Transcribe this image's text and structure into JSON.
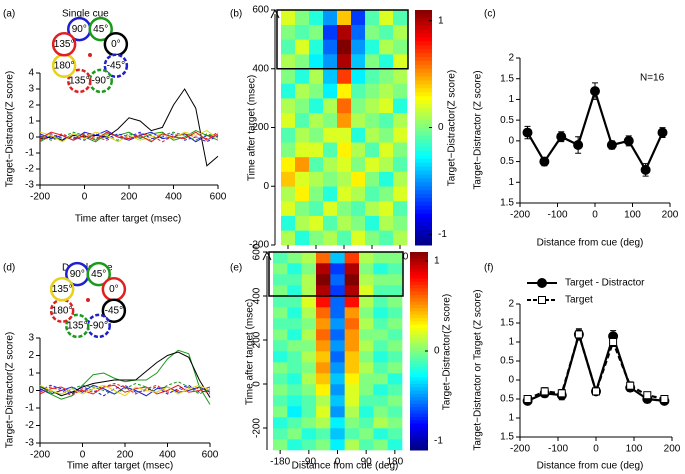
{
  "chart_data": [
    {
      "type": "line",
      "label": "(a)",
      "title": "Single cue",
      "xlabel": "Time after target (msec)",
      "ylabel": "Target−Distractor(Z score)",
      "xlim": [
        -200,
        600
      ],
      "xticks": [
        -200,
        0,
        200,
        400,
        600
      ],
      "ylim": [
        -3,
        4
      ],
      "yticks": [
        -3,
        -2,
        -1,
        0,
        1,
        2,
        3,
        4
      ],
      "x": [
        -200,
        -150,
        -100,
        -50,
        0,
        50,
        100,
        150,
        200,
        250,
        300,
        350,
        400,
        450,
        500,
        550,
        600
      ],
      "series": [
        {
          "name": "90°",
          "color": "#1f1fd0",
          "values": [
            0.2,
            -0.1,
            0.1,
            -0.2,
            0.3,
            0.1,
            0.4,
            0,
            -0.2,
            0.1,
            0.3,
            -0.1,
            0,
            0.2,
            -0.3,
            0.1,
            0
          ]
        },
        {
          "name": "45°",
          "color": "#1a9a1a",
          "values": [
            -0.3,
            0.1,
            -0.2,
            0.2,
            0,
            -0.3,
            0.2,
            0.1,
            0.3,
            -0.1,
            0.2,
            0.3,
            -0.2,
            0,
            0.4,
            0.1,
            -0.2
          ]
        },
        {
          "name": "0°",
          "color": "#000000",
          "values": [
            -0.1,
            0,
            -0.2,
            0.1,
            0,
            0.1,
            0,
            0.5,
            1.2,
            1.0,
            0.4,
            0.6,
            2.0,
            3.0,
            1.8,
            -1.8,
            -1.2
          ]
        },
        {
          "name": "-45°",
          "color": "#1f1fd0",
          "dash": true,
          "values": [
            0,
            0.2,
            -0.1,
            0,
            -0.2,
            0.2,
            -0.1,
            0.2,
            0,
            0.3,
            -0.1,
            0,
            0.2,
            -0.2,
            0,
            -0.3,
            0.1
          ]
        },
        {
          "name": "-90°",
          "color": "#1a9a1a",
          "dash": true,
          "values": [
            0.1,
            -0.2,
            0,
            0.3,
            0.1,
            -0.1,
            0,
            -0.2,
            0.2,
            0,
            -0.2,
            0.1,
            0.3,
            0.1,
            -0.2,
            0.2,
            0
          ]
        },
        {
          "name": "135°",
          "color": "#e02020",
          "dash": true,
          "values": [
            -0.2,
            0,
            0.2,
            -0.1,
            0.2,
            0,
            -0.2,
            0.1,
            -0.1,
            0.2,
            0.1,
            -0.3,
            0.1,
            0.2,
            0,
            -0.1,
            0.3
          ]
        },
        {
          "name": "180°",
          "color": "#e6d21a",
          "values": [
            0.3,
            0.1,
            -0.3,
            0.2,
            -0.1,
            0.3,
            0.1,
            -0.3,
            0.1,
            -0.2,
            0,
            0.2,
            -0.1,
            0.3,
            0.1,
            0.4,
            -0.1
          ]
        },
        {
          "name": "135°",
          "color": "#e02020",
          "values": [
            -0.1,
            0.3,
            0.1,
            -0.2,
            0.1,
            -0.2,
            0.3,
            0,
            -0.1,
            0.1,
            -0.3,
            0.2,
            0,
            -0.1,
            0.3,
            -0.2,
            0.2
          ]
        }
      ]
    },
    {
      "type": "heatmap",
      "label": "(b)",
      "xlabel": "Distance from cue (deg)",
      "ylabel": "Time after target (msec)",
      "colorbar_label": "Target−Distractor(Z score)",
      "xlim": [
        -202.5,
        202.5
      ],
      "xticks": [
        -180,
        -90,
        0,
        90,
        180
      ],
      "ylim": [
        -200,
        600
      ],
      "yticks": [
        -200,
        0,
        200,
        400,
        600
      ],
      "clim": [
        -1.1,
        1.1
      ],
      "cticks": [
        1,
        0,
        -1
      ],
      "highlight": [
        400,
        600
      ],
      "x": [
        -180,
        -135,
        -90,
        -45,
        0,
        45,
        90,
        135,
        180
      ],
      "y": [
        -175,
        -125,
        -75,
        -25,
        25,
        75,
        125,
        175,
        225,
        275,
        325,
        375,
        425,
        475,
        525,
        575
      ],
      "z": [
        [
          0.1,
          -0.2,
          0,
          0.1,
          -0.1,
          0.2,
          0,
          -0.1,
          0.1
        ],
        [
          -0.2,
          0.1,
          0.2,
          -0.1,
          0.1,
          0,
          -0.2,
          0.1,
          0
        ],
        [
          0.2,
          0,
          -0.1,
          0.2,
          0,
          -0.1,
          0.1,
          0.2,
          -0.1
        ],
        [
          0.1,
          0.3,
          0,
          -0.2,
          0.2,
          0.1,
          -0.1,
          0,
          0.2
        ],
        [
          0.4,
          0.2,
          0.1,
          0,
          0.1,
          0.3,
          0,
          -0.2,
          0.1
        ],
        [
          0.3,
          0.5,
          -0.1,
          0.1,
          0.2,
          0,
          0.2,
          0.1,
          -0.1
        ],
        [
          0,
          0.2,
          0.2,
          -0.1,
          0.3,
          0.1,
          -0.1,
          0.2,
          0
        ],
        [
          -0.1,
          0.1,
          0,
          0.2,
          0.2,
          -0.2,
          0.1,
          0,
          0.2
        ],
        [
          0.2,
          -0.1,
          0.1,
          0,
          0.5,
          0.1,
          0,
          -0.1,
          0.1
        ],
        [
          0.1,
          0,
          -0.2,
          0.1,
          0.6,
          0,
          0.1,
          0.2,
          -0.2
        ],
        [
          -0.2,
          0.1,
          0,
          -0.3,
          0.3,
          -0.1,
          0,
          0.1,
          0
        ],
        [
          0,
          -0.2,
          0.1,
          -0.4,
          0.7,
          -0.3,
          -0.1,
          0,
          0.1
        ],
        [
          0.1,
          0,
          -0.3,
          -0.5,
          1.0,
          -0.4,
          0,
          -0.2,
          0.2
        ],
        [
          -0.1,
          0.2,
          -0.2,
          -0.6,
          1.1,
          -0.5,
          -0.2,
          0.1,
          0
        ],
        [
          0,
          -0.1,
          0,
          -0.7,
          1.0,
          -0.6,
          0,
          -0.1,
          0.1
        ],
        [
          0.2,
          0,
          -0.2,
          -0.5,
          0.4,
          -0.7,
          -0.1,
          0.2,
          -0.1
        ]
      ]
    },
    {
      "type": "line",
      "label": "(c)",
      "xlabel": "Distance from cue (deg)",
      "ylabel": "Target−Distractor (Z score)",
      "annotation": "N=16",
      "xlim": [
        -200,
        200
      ],
      "xticks": [
        -200,
        -100,
        0,
        100,
        200
      ],
      "ylim": [
        -1.5,
        2
      ],
      "yticks": [
        2,
        1.5,
        1,
        0.5,
        0,
        {
          "value": -0.5,
          "label": "0.5"
        },
        {
          "value": -1,
          "label": "1"
        },
        {
          "value": -1.5,
          "label": "1.5"
        }
      ],
      "x": [
        -180,
        -135,
        -90,
        -45,
        0,
        45,
        90,
        135,
        180
      ],
      "series": [
        {
          "color": "#000000",
          "marker": "circle",
          "fill": "#000000",
          "values": [
            0.2,
            -0.5,
            0.1,
            -0.1,
            1.2,
            -0.1,
            0,
            -0.7,
            0.2
          ],
          "errors": [
            0.15,
            0.1,
            0.12,
            0.2,
            0.2,
            0.1,
            0.12,
            0.15,
            0.12
          ]
        }
      ]
    },
    {
      "type": "line",
      "label": "(d)",
      "title": "Double cue",
      "xlabel": "Time after target (msec)",
      "ylabel": "Target−Distractor(Z score)",
      "xlim": [
        -200,
        600
      ],
      "xticks": [
        -200,
        0,
        200,
        400,
        600
      ],
      "ylim": [
        -3,
        3
      ],
      "yticks": [
        -3,
        -2,
        -1,
        0,
        1,
        2,
        3
      ],
      "x": [
        -200,
        -150,
        -100,
        -50,
        0,
        50,
        100,
        150,
        200,
        250,
        300,
        350,
        400,
        450,
        500,
        550,
        600
      ],
      "series": [
        {
          "name": "90°",
          "color": "#1f1fd0",
          "values": [
            0.1,
            -0.2,
            0,
            0.2,
            -0.1,
            0.3,
            0.1,
            -0.2,
            0.2,
            0,
            -0.3,
            0.1,
            0.2,
            -0.1,
            0,
            0.2,
            -0.1
          ]
        },
        {
          "name": "45°",
          "color": "#1a9a1a",
          "values": [
            0.3,
            -0.2,
            -0.5,
            -0.3,
            0.3,
            0.9,
            1.0,
            0.7,
            0.5,
            0.6,
            0.6,
            1.0,
            1.8,
            2.3,
            2.1,
            0.2,
            -0.8
          ]
        },
        {
          "name": "0°",
          "color": "#e02020",
          "values": [
            -0.2,
            0.1,
            0.2,
            -0.1,
            0,
            -0.2,
            0.2,
            0.3,
            -0.1,
            0.1,
            0.2,
            -0.2,
            0,
            0.3,
            -0.1,
            0,
            0.2
          ]
        },
        {
          "name": "-45°",
          "color": "#000000",
          "values": [
            0.2,
            0,
            -0.3,
            -0.1,
            0.2,
            0.4,
            0.5,
            0.6,
            0.6,
            0.6,
            1.1,
            1.6,
            2.0,
            2.2,
            1.9,
            0.6,
            -0.4
          ]
        },
        {
          "name": "-90°",
          "color": "#1f1fd0",
          "dash": true,
          "values": [
            0,
            0.3,
            0.1,
            -0.2,
            0.2,
            0,
            -0.3,
            0.1,
            0.3,
            -0.1,
            0,
            0.2,
            -0.2,
            0.1,
            0.3,
            -0.1,
            0
          ]
        },
        {
          "name": "135°",
          "color": "#1a9a1a",
          "dash": true,
          "values": [
            0.2,
            -0.1,
            -0.2,
            0.1,
            0.3,
            0.2,
            0,
            -0.2,
            0.1,
            0.4,
            0.2,
            -0.1,
            0.3,
            0.5,
            0.2,
            -0.2,
            0.1
          ]
        },
        {
          "name": "180°",
          "color": "#e02020",
          "dash": true,
          "values": [
            -0.1,
            0.2,
            0,
            -0.3,
            0.1,
            -0.1,
            0.2,
            0.4,
            0.2,
            -0.2,
            0.1,
            0.3,
            -0.1,
            0,
            0.2,
            0.1,
            -0.2
          ]
        },
        {
          "name": "135°",
          "color": "#e6d21a",
          "values": [
            0.3,
            0,
            -0.2,
            0.1,
            -0.2,
            0.1,
            0.3,
            0,
            -0.3,
            0.2,
            0,
            -0.1,
            0.2,
            -0.2,
            0.1,
            0.3,
            0
          ]
        }
      ]
    },
    {
      "type": "heatmap",
      "label": "(e)",
      "xlabel": "Distance from cue (deg)",
      "ylabel": "Time after target (msec)",
      "colorbar_label": "Target−Distractor(Z score)",
      "xlim": [
        -202.5,
        202.5
      ],
      "xticks": [
        -180,
        -90,
        0,
        90,
        180
      ],
      "ylim": [
        -300,
        600
      ],
      "yticks": [
        -200,
        0,
        200,
        400,
        600
      ],
      "clim": [
        -1.1,
        1.1
      ],
      "cticks": [
        1,
        0,
        -1
      ],
      "highlight": [
        400,
        600
      ],
      "x": [
        -180,
        -135,
        -90,
        -45,
        0,
        45,
        90,
        135,
        180
      ],
      "y": [
        -275,
        -225,
        -175,
        -125,
        -75,
        -25,
        25,
        75,
        125,
        175,
        225,
        275,
        325,
        375,
        425,
        475,
        525,
        575
      ],
      "z": [
        [
          0,
          -0.2,
          -0.1,
          0,
          -0.3,
          0.1,
          -0.1,
          0,
          -0.2
        ],
        [
          -0.1,
          0,
          -0.2,
          -0.1,
          -0.4,
          -0.1,
          0,
          -0.2,
          -0.1
        ],
        [
          -0.2,
          -0.1,
          0,
          0.1,
          -0.3,
          0,
          -0.1,
          0.1,
          0
        ],
        [
          0,
          -0.3,
          -0.1,
          0.2,
          -0.5,
          0.1,
          -0.2,
          0,
          -0.1
        ],
        [
          -0.1,
          -0.2,
          -0.1,
          0.1,
          -0.4,
          0.2,
          -0.1,
          -0.1,
          0
        ],
        [
          0,
          -0.1,
          0,
          0.3,
          -0.5,
          0.2,
          0,
          -0.2,
          -0.1
        ],
        [
          -0.1,
          -0.2,
          0.1,
          0.4,
          -0.4,
          0.3,
          0,
          0,
          -0.2
        ],
        [
          0,
          -0.1,
          0,
          0.5,
          -0.5,
          0.4,
          0.1,
          -0.1,
          0
        ],
        [
          -0.2,
          -0.1,
          0.1,
          0.4,
          -0.6,
          0.4,
          0,
          -0.2,
          -0.1
        ],
        [
          -0.1,
          0,
          0,
          0.5,
          -0.5,
          0.5,
          0.1,
          -0.1,
          0
        ],
        [
          0,
          -0.2,
          0.1,
          0.6,
          -0.6,
          0.5,
          0,
          0,
          -0.1
        ],
        [
          -0.1,
          -0.1,
          0,
          0.5,
          -0.5,
          0.6,
          0.1,
          -0.1,
          0
        ],
        [
          0,
          -0.2,
          0.1,
          0.6,
          -0.6,
          0.5,
          0,
          -0.2,
          -0.1
        ],
        [
          -0.1,
          -0.1,
          0.2,
          0.8,
          -0.6,
          0.8,
          0.1,
          -0.1,
          0
        ],
        [
          0,
          -0.2,
          0.1,
          1.0,
          -0.7,
          1.0,
          0.2,
          -0.1,
          -0.1
        ],
        [
          -0.1,
          -0.1,
          0.1,
          1.1,
          -0.6,
          1.1,
          0.1,
          0,
          0
        ],
        [
          0,
          -0.2,
          0,
          1.0,
          -0.7,
          1.0,
          0,
          -0.2,
          -0.1
        ],
        [
          -0.1,
          0,
          0.1,
          0.6,
          -0.4,
          0.7,
          0.1,
          0,
          0
        ]
      ]
    },
    {
      "type": "line",
      "label": "(f)",
      "xlabel": "Distance from cue (deg)",
      "ylabel": "Target−Distractor or Target (Z score)",
      "xlim": [
        -200,
        200
      ],
      "xticks": [
        -200,
        -100,
        0,
        100,
        200
      ],
      "ylim": [
        -1.5,
        2
      ],
      "yticks": [
        2,
        1.5,
        1,
        0.5,
        0,
        {
          "value": -0.5,
          "label": "0.5"
        },
        {
          "value": -1,
          "label": "1"
        },
        {
          "value": -1.5,
          "label": "1.5"
        }
      ],
      "x": [
        -180,
        -135,
        -90,
        -45,
        0,
        45,
        90,
        135,
        180
      ],
      "series": [
        {
          "name": "Target - Distractor",
          "color": "#000000",
          "marker": "circle",
          "fill": "#000000",
          "values": [
            -0.55,
            -0.35,
            -0.4,
            1.2,
            -0.3,
            1.15,
            -0.2,
            -0.5,
            -0.55
          ],
          "errors": [
            0.08,
            0.1,
            0.12,
            0.15,
            0.08,
            0.15,
            0.1,
            0.1,
            0.08
          ]
        },
        {
          "name": "Target",
          "color": "#000000",
          "dash": true,
          "marker": "square",
          "fill": "#ffffff",
          "values": [
            -0.5,
            -0.3,
            -0.35,
            1.2,
            -0.3,
            1.0,
            -0.15,
            -0.4,
            -0.5
          ],
          "errors": [
            0.08,
            0.1,
            0.1,
            0.12,
            0.08,
            0.12,
            0.1,
            0.08,
            0.08
          ]
        }
      ]
    }
  ]
}
